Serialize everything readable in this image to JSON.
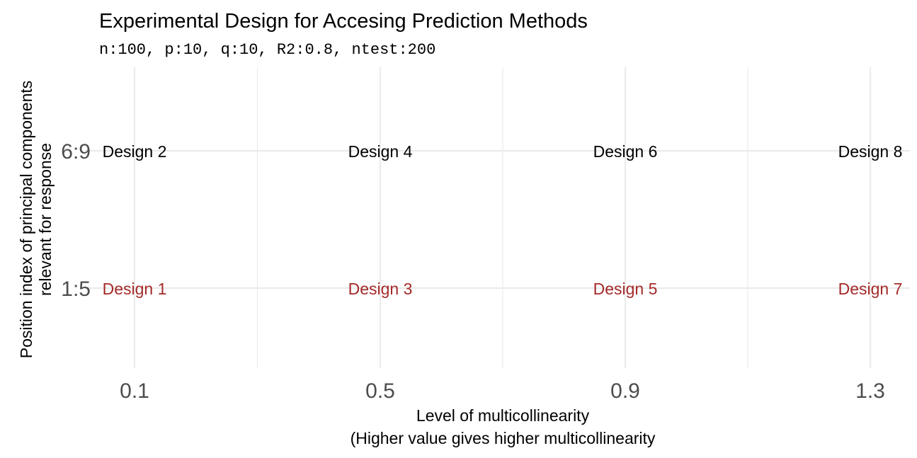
{
  "chart_data": {
    "type": "scatter",
    "title": "Experimental Design for Accesing Prediction Methods",
    "subtitle": "n:100, p:10, q:10, R2:0.8, ntest:200",
    "xlabel": [
      "Level of multicollinearity",
      "(Higher value gives higher multicollinearity"
    ],
    "ylabel": [
      "Position index of principal components",
      "relevant for response"
    ],
    "x_ticks": [
      "0.1",
      "0.5",
      "0.9",
      "1.3"
    ],
    "y_ticks": [
      "1:5",
      "6:9"
    ],
    "grid": true,
    "legend": "none",
    "colors": {
      "row_1:5": "#a52a2a",
      "row_6:9": "#000000"
    },
    "points": [
      {
        "x": "0.1",
        "y": "1:5",
        "label": "Design 1"
      },
      {
        "x": "0.1",
        "y": "6:9",
        "label": "Design 2"
      },
      {
        "x": "0.5",
        "y": "1:5",
        "label": "Design 3"
      },
      {
        "x": "0.5",
        "y": "6:9",
        "label": "Design 4"
      },
      {
        "x": "0.9",
        "y": "1:5",
        "label": "Design 5"
      },
      {
        "x": "0.9",
        "y": "6:9",
        "label": "Design 6"
      },
      {
        "x": "1.3",
        "y": "1:5",
        "label": "Design 7"
      },
      {
        "x": "1.3",
        "y": "6:9",
        "label": "Design 8"
      }
    ]
  }
}
